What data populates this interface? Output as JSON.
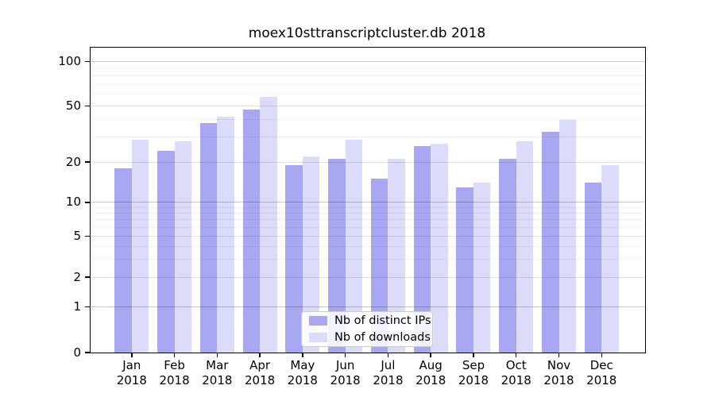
{
  "chart_data": {
    "type": "bar",
    "title": "moex10sttranscriptcluster.db 2018",
    "year": "2018",
    "categories": [
      "Jan",
      "Feb",
      "Mar",
      "Apr",
      "May",
      "Jun",
      "Jul",
      "Aug",
      "Sep",
      "Oct",
      "Nov",
      "Dec"
    ],
    "series": [
      {
        "name": "Nb of distinct IPs",
        "color": "#a7a7f2",
        "values": [
          18,
          24,
          38,
          47,
          19,
          21,
          15,
          26,
          13,
          21,
          33,
          14
        ]
      },
      {
        "name": "Nb of downloads",
        "color": "#dcdcfa",
        "values": [
          29,
          28,
          42,
          58,
          22,
          29,
          21,
          27,
          14,
          28,
          40,
          19
        ]
      }
    ],
    "xlabel": "",
    "ylabel": "",
    "yscale": "symlog",
    "y_ticks": [
      0,
      1,
      2,
      5,
      10,
      20,
      50,
      100
    ],
    "y_minor_gridlines": [
      3,
      4,
      6,
      7,
      8,
      9,
      30,
      40,
      60,
      70,
      80,
      90
    ],
    "ylim": [
      0,
      125
    ],
    "grid": true,
    "legend_position": "inside lower-center"
  }
}
